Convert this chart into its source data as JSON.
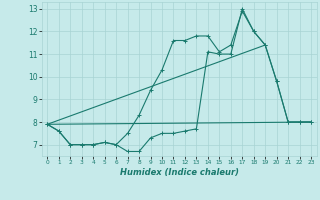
{
  "xlabel": "Humidex (Indice chaleur)",
  "ylabel": "",
  "xlim": [
    -0.5,
    23.5
  ],
  "ylim": [
    6.5,
    13.3
  ],
  "xticks": [
    0,
    1,
    2,
    3,
    4,
    5,
    6,
    7,
    8,
    9,
    10,
    11,
    12,
    13,
    14,
    15,
    16,
    17,
    18,
    19,
    20,
    21,
    22,
    23
  ],
  "yticks": [
    7,
    8,
    9,
    10,
    11,
    12,
    13
  ],
  "bg_color": "#c6eaea",
  "grid_color": "#a8d4d4",
  "line_color": "#1a7a6e",
  "series1_x": [
    0,
    1,
    2,
    3,
    4,
    5,
    6,
    7,
    8,
    9,
    10,
    11,
    12,
    13,
    14,
    15,
    16,
    17,
    18,
    19,
    20,
    21,
    22,
    23
  ],
  "series1_y": [
    7.9,
    7.6,
    7.0,
    7.0,
    7.0,
    7.1,
    7.0,
    6.7,
    6.7,
    7.3,
    7.5,
    7.5,
    7.6,
    7.7,
    11.1,
    11.0,
    11.0,
    13.0,
    12.0,
    11.4,
    9.8,
    8.0,
    8.0,
    8.0
  ],
  "series2_x": [
    0,
    1,
    2,
    3,
    4,
    5,
    6,
    7,
    8,
    9,
    10,
    11,
    12,
    13,
    14,
    15,
    16,
    17,
    18,
    19,
    20,
    21,
    22,
    23
  ],
  "series2_y": [
    7.9,
    7.6,
    7.0,
    7.0,
    7.0,
    7.1,
    7.0,
    7.5,
    8.3,
    9.4,
    10.3,
    11.6,
    11.6,
    11.8,
    11.8,
    11.1,
    11.4,
    12.9,
    12.0,
    11.4,
    9.8,
    8.0,
    8.0,
    8.0
  ],
  "series3_x": [
    0,
    23
  ],
  "series3_y": [
    7.9,
    8.0
  ],
  "series4_x": [
    0,
    19
  ],
  "series4_y": [
    7.9,
    11.4
  ]
}
